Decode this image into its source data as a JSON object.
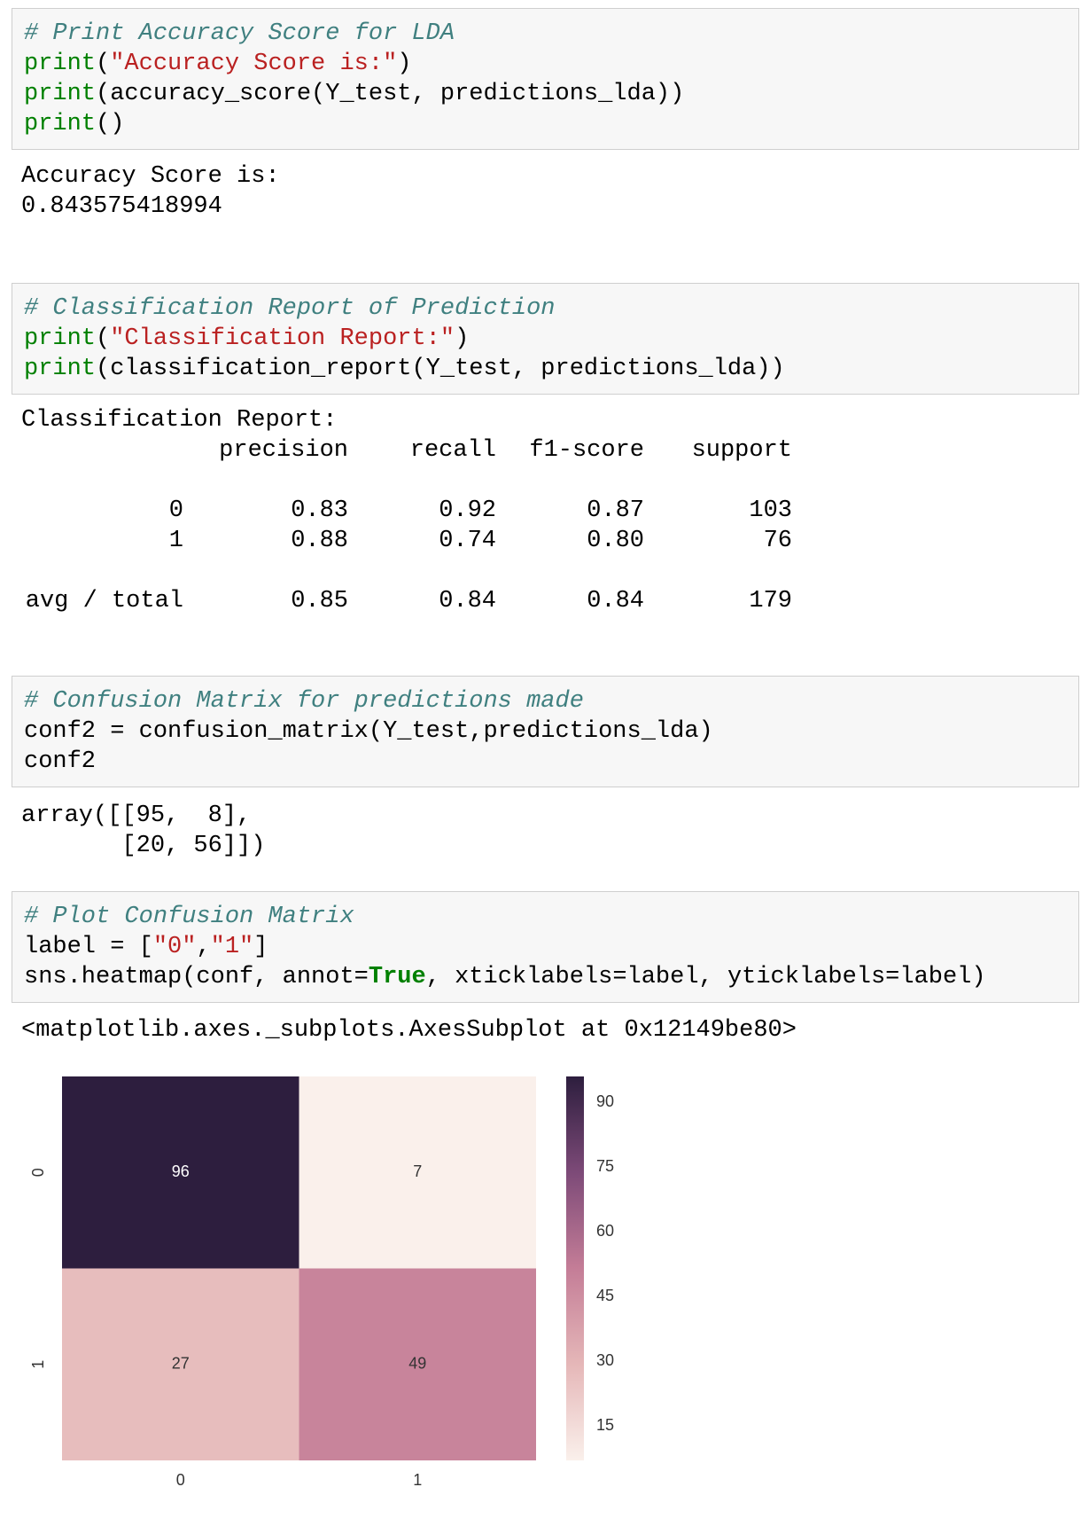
{
  "cells": [
    {
      "input": [
        [
          {
            "text": "# Print Accuracy Score for LDA",
            "color": "#408080",
            "italic": true
          }
        ],
        [
          {
            "text": "print",
            "color": "#008000"
          },
          {
            "text": "(",
            "color": "#000000"
          },
          {
            "text": "\"Accuracy Score is:\"",
            "color": "#ba2121"
          },
          {
            "text": ")",
            "color": "#000000"
          }
        ],
        [
          {
            "text": "print",
            "color": "#008000"
          },
          {
            "text": "(accuracy_score(Y_test, predictions_lda))",
            "color": "#000000"
          }
        ],
        [
          {
            "text": "print",
            "color": "#008000"
          },
          {
            "text": "()",
            "color": "#000000"
          }
        ]
      ],
      "output": [
        "Accuracy Score is:",
        "0.843575418994"
      ]
    },
    {
      "input": [
        [
          {
            "text": "# Classification Report of Prediction",
            "color": "#408080",
            "italic": true
          }
        ],
        [
          {
            "text": "print",
            "color": "#008000"
          },
          {
            "text": "(",
            "color": "#000000"
          },
          {
            "text": "\"Classification Report:\"",
            "color": "#ba2121"
          },
          {
            "text": ")",
            "color": "#000000"
          }
        ],
        [
          {
            "text": "print",
            "color": "#008000"
          },
          {
            "text": "(classification_report(Y_test, predictions_lda))",
            "color": "#000000"
          }
        ]
      ],
      "report": {
        "title": "Classification Report:",
        "columns": [
          "precision",
          "recall",
          "f1-score",
          "support"
        ],
        "rows": [
          {
            "label": "0",
            "values": [
              "0.83",
              "0.92",
              "0.87",
              "103"
            ]
          },
          {
            "label": "1",
            "values": [
              "0.88",
              "0.74",
              "0.80",
              "76"
            ]
          },
          {
            "label": "avg / total",
            "values": [
              "0.85",
              "0.84",
              "0.84",
              "179"
            ]
          }
        ]
      }
    },
    {
      "input": [
        [
          {
            "text": "# Confusion Matrix for predictions made",
            "color": "#408080",
            "italic": true
          }
        ],
        [
          {
            "text": "conf2 = confusion_matrix(Y_test,predictions_lda)",
            "color": "#000000"
          }
        ],
        [
          {
            "text": "conf2",
            "color": "#000000"
          }
        ]
      ],
      "output": [
        "array([[95,  8],",
        "       [20, 56]])"
      ]
    },
    {
      "input": [
        [
          {
            "text": "# Plot Confusion Matrix",
            "color": "#408080",
            "italic": true
          }
        ],
        [
          {
            "text": "label = [",
            "color": "#000000"
          },
          {
            "text": "\"0\"",
            "color": "#ba2121"
          },
          {
            "text": ",",
            "color": "#000000"
          },
          {
            "text": "\"1\"",
            "color": "#ba2121"
          },
          {
            "text": "]",
            "color": "#000000"
          }
        ],
        [
          {
            "text": "sns.heatmap(conf, annot=",
            "color": "#000000"
          },
          {
            "text": "True",
            "color": "#008000",
            "bold": true
          },
          {
            "text": ", xticklabels=label, yticklabels=label)",
            "color": "#000000"
          }
        ]
      ],
      "output": [
        "<matplotlib.axes._subplots.AxesSubplot at 0x12149be80>"
      ]
    }
  ],
  "chart_data": {
    "type": "heatmap",
    "x_categories": [
      "0",
      "1"
    ],
    "y_categories": [
      "0",
      "1"
    ],
    "values": [
      [
        96,
        7
      ],
      [
        27,
        49
      ]
    ],
    "clim": [
      7,
      96
    ],
    "cticks": [
      15,
      30,
      45,
      60,
      75,
      90
    ],
    "colormap": [
      "#faf0eb",
      "#e5b7b8",
      "#c47d97",
      "#7d4a78",
      "#2d1e3e"
    ]
  }
}
